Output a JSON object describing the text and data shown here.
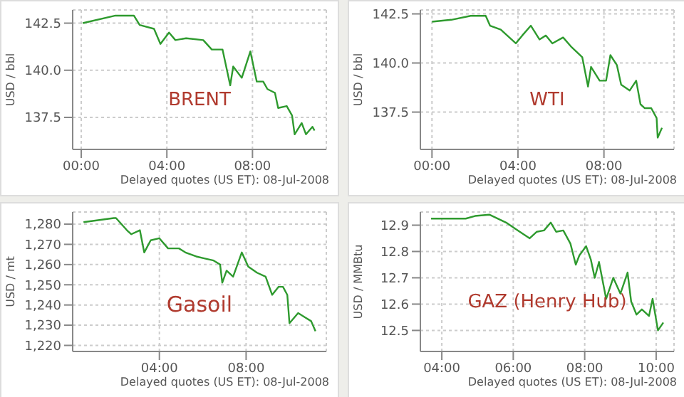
{
  "chart_data": [
    {
      "type": "line",
      "xlabel": "Delayed quotes (US ET): 08-Jul-2008",
      "ylabel": "USD / bbl",
      "annotations": [
        "BRENT"
      ],
      "grid": true,
      "xlim": [
        -0.4,
        11.45
      ],
      "ylim": [
        135.8,
        143.2
      ],
      "xticks": [
        {
          "value": 0,
          "label": "00:00"
        },
        {
          "value": 4,
          "label": "04:00"
        },
        {
          "value": 8,
          "label": "08:00"
        }
      ],
      "yticks": [
        {
          "value": 137.5,
          "label": "137.5"
        },
        {
          "value": 140,
          "label": "140.0"
        },
        {
          "value": 142.5,
          "label": "142.5"
        }
      ],
      "series": [
        {
          "color": "#2e9a2e",
          "x": [
            0.07,
            1.6,
            2.46,
            2.73,
            3.4,
            3.7,
            4.1,
            4.4,
            4.9,
            5.7,
            6.1,
            6.6,
            6.96,
            7.1,
            7.5,
            7.9,
            8.2,
            8.5,
            8.7,
            9.05,
            9.2,
            9.6,
            9.85,
            9.97,
            10.3,
            10.5,
            10.8,
            10.9
          ],
          "values": [
            142.5,
            142.9,
            142.9,
            142.4,
            142.2,
            141.4,
            142.0,
            141.6,
            141.7,
            141.6,
            141.1,
            141.1,
            139.2,
            140.2,
            139.6,
            141.0,
            139.4,
            139.4,
            139.0,
            138.8,
            138.0,
            138.1,
            137.6,
            136.6,
            137.2,
            136.6,
            137.0,
            136.8
          ]
        }
      ]
    },
    {
      "type": "line",
      "xlabel": "Delayed quotes (US ET): 08-Jul-2008",
      "ylabel": "USD / bbl",
      "annotations": [
        "WTI"
      ],
      "grid": true,
      "xlim": [
        -0.54,
        11.26
      ],
      "ylim": [
        135.6,
        142.7
      ],
      "xticks": [
        {
          "value": 0,
          "label": "00:00"
        },
        {
          "value": 4,
          "label": "04:00"
        },
        {
          "value": 8,
          "label": "08:00"
        }
      ],
      "yticks": [
        {
          "value": 137.5,
          "label": "137.5"
        },
        {
          "value": 140,
          "label": "140.0"
        },
        {
          "value": 142.5,
          "label": "142.5"
        }
      ],
      "series": [
        {
          "color": "#2e9a2e",
          "x": [
            0,
            0.9,
            1.8,
            2.5,
            2.7,
            3.2,
            3.9,
            4.2,
            4.6,
            5.0,
            5.3,
            5.6,
            6.1,
            6.5,
            6.99,
            7.26,
            7.4,
            7.8,
            8.1,
            8.3,
            8.6,
            8.8,
            9.2,
            9.5,
            9.7,
            9.9,
            10.2,
            10.45,
            10.5,
            10.7
          ],
          "values": [
            142.1,
            142.2,
            142.4,
            142.4,
            141.9,
            141.7,
            141.0,
            141.4,
            141.9,
            141.2,
            141.4,
            141.0,
            141.3,
            140.8,
            140.3,
            138.8,
            139.8,
            139.1,
            139.1,
            140.4,
            139.9,
            138.9,
            138.6,
            139.1,
            137.9,
            137.7,
            137.7,
            137.2,
            136.2,
            136.7
          ]
        }
      ]
    },
    {
      "type": "line",
      "xlabel": "Delayed quotes (US ET): 08-Jul-2008",
      "ylabel": "USD / mt",
      "annotations": [
        "Gasoil"
      ],
      "grid": true,
      "xlim": [
        0,
        11.7
      ],
      "ylim": [
        1217,
        1286
      ],
      "xticks": [
        {
          "value": 4,
          "label": "04:00"
        },
        {
          "value": 8,
          "label": "08:00"
        }
      ],
      "yticks": [
        {
          "value": 1220,
          "label": "1,220"
        },
        {
          "value": 1230,
          "label": "1,230"
        },
        {
          "value": 1240,
          "label": "1,240"
        },
        {
          "value": 1250,
          "label": "1,250"
        },
        {
          "value": 1260,
          "label": "1,260"
        },
        {
          "value": 1270,
          "label": "1,270"
        },
        {
          "value": 1280,
          "label": "1,280"
        }
      ],
      "series": [
        {
          "color": "#2e9a2e",
          "x": [
            0.5,
            1.9,
            2.0,
            2.5,
            2.7,
            3.1,
            3.3,
            3.6,
            4.0,
            4.4,
            4.9,
            5.2,
            5.7,
            6.1,
            6.5,
            6.8,
            6.9,
            7.1,
            7.4,
            7.8,
            8.1,
            8.5,
            8.9,
            9.2,
            9.5,
            9.7,
            9.9,
            10.0,
            10.4,
            10.7,
            11.0,
            11.2
          ],
          "values": [
            1281,
            1283,
            1283,
            1277,
            1275,
            1277,
            1266,
            1272,
            1273,
            1268,
            1268,
            1266,
            1264,
            1263,
            1262,
            1260,
            1251,
            1257,
            1254,
            1266,
            1259,
            1256,
            1254,
            1245,
            1249,
            1249,
            1245,
            1231,
            1236,
            1234,
            1232,
            1227
          ]
        }
      ]
    },
    {
      "type": "line",
      "xlabel": "Delayed quotes (US ET): 08-Jul-2008",
      "ylabel": "USD / MMBtu",
      "annotations": [
        "GAZ (Henry Hub)"
      ],
      "grid": true,
      "xlim": [
        3.4,
        10.5
      ],
      "ylim": [
        12.42,
        12.95
      ],
      "xticks": [
        {
          "value": 4,
          "label": "04:00"
        },
        {
          "value": 6,
          "label": "06:00"
        },
        {
          "value": 8,
          "label": "08:00"
        },
        {
          "value": 10,
          "label": "10:00"
        }
      ],
      "yticks": [
        {
          "value": 12.5,
          "label": "12.5"
        },
        {
          "value": 12.6,
          "label": "12.6"
        },
        {
          "value": 12.7,
          "label": "12.7"
        },
        {
          "value": 12.8,
          "label": "12.8"
        },
        {
          "value": 12.9,
          "label": "12.9"
        }
      ],
      "series": [
        {
          "color": "#2e9a2e",
          "x": [
            3.7,
            4.67,
            4.93,
            5.33,
            5.8,
            6.07,
            6.46,
            6.66,
            6.86,
            7.05,
            7.2,
            7.4,
            7.6,
            7.75,
            7.85,
            8.04,
            8.17,
            8.28,
            8.4,
            8.6,
            8.8,
            9.0,
            9.2,
            9.3,
            9.45,
            9.6,
            9.8,
            9.9,
            10.0,
            10.05,
            10.2
          ],
          "values": [
            12.925,
            12.925,
            12.935,
            12.94,
            12.91,
            12.885,
            12.85,
            12.875,
            12.88,
            12.91,
            12.875,
            12.88,
            12.83,
            12.75,
            12.785,
            12.82,
            12.77,
            12.7,
            12.76,
            12.62,
            12.7,
            12.64,
            12.72,
            12.61,
            12.56,
            12.58,
            12.555,
            12.62,
            12.54,
            12.5,
            12.53
          ]
        }
      ]
    }
  ]
}
